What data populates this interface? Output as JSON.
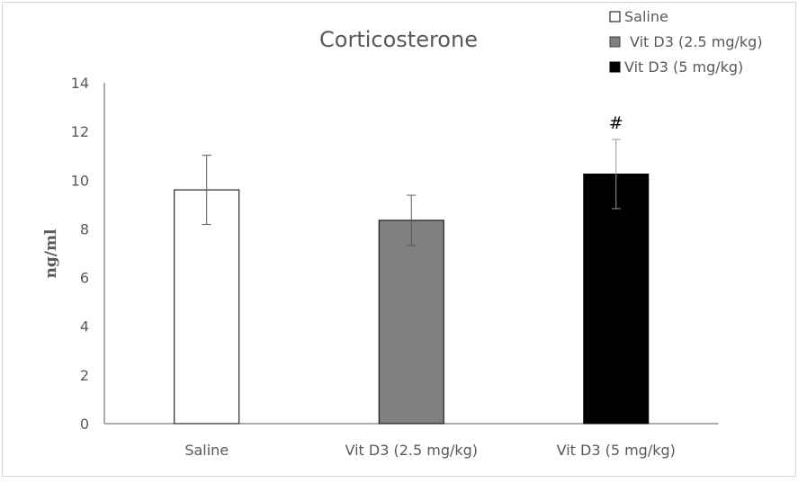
{
  "chart_data": {
    "type": "bar",
    "title": "Corticosterone",
    "xlabel": "",
    "ylabel": "ng/ml",
    "ylim": [
      0,
      14
    ],
    "yticks": [
      0,
      2,
      4,
      6,
      8,
      10,
      12,
      14
    ],
    "grid": false,
    "legend_position": "top-right",
    "categories": [
      "Saline",
      "Vit D3 (2.5 mg/kg)",
      "Vit D3 (5 mg/kg)"
    ],
    "values": [
      9.6,
      8.35,
      10.25
    ],
    "errors": [
      1.42,
      1.03,
      1.42
    ],
    "colors": [
      "#ffffff",
      "#808080",
      "#000000"
    ],
    "annotations": [
      "",
      "",
      "#"
    ],
    "legend": [
      "Saline",
      "Vit D3 (2.5 mg/kg)",
      "Vit D3 (5 mg/kg)"
    ]
  }
}
